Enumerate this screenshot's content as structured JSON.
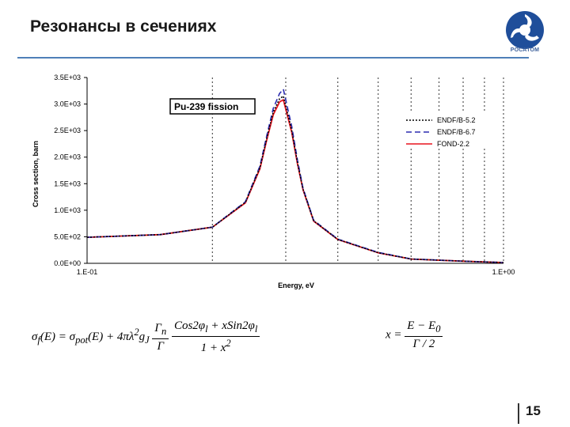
{
  "slide": {
    "title": "Резонансы в сечениях",
    "logo_text": "РОСАТОМ",
    "page_number": "15"
  },
  "formulas": {
    "cross_section": {
      "lhs": "σ<sub>f</sub>(E) = σ<sub>pot</sub>(E) + 4πλ<sup>2</sup>g<sub>J</sub>",
      "frac1_num": "Γ<sub>n</sub>",
      "frac1_den": "Γ",
      "frac2_num": "Cos2φ<sub>l</sub> + xSin2φ<sub>l</sub>",
      "frac2_den": "1 + x<sup>2</sup>"
    },
    "x_def": {
      "lhs": "x =",
      "num": "E − E<sub>0</sub>",
      "den": "Γ / 2"
    }
  },
  "chart_data": {
    "type": "line",
    "annotation": "Pu-239 fission",
    "xlabel": "Energy, eV",
    "ylabel": "Cross section, barn",
    "xscale": "log",
    "xlim": [
      0.1,
      1.0
    ],
    "ylim": [
      0,
      3500
    ],
    "x_tick_labels": [
      "1.E-01",
      "1.E+00"
    ],
    "y_ticks": [
      0,
      500,
      1000,
      1500,
      2000,
      2500,
      3000,
      3500
    ],
    "y_tick_labels": [
      "0.0E+00",
      "5.0E+02",
      "1.0E+03",
      "1.5E+03",
      "2.0E+03",
      "2.5E+03",
      "3.0E+03",
      "3.5E+03"
    ],
    "grid": "vertical dotted",
    "legend_position": "right",
    "series": [
      {
        "name": "ENDF/B-5.2",
        "color": "#000000",
        "style": "dotted",
        "x": [
          0.1,
          0.15,
          0.2,
          0.24,
          0.26,
          0.27,
          0.28,
          0.29,
          0.296,
          0.31,
          0.32,
          0.33,
          0.35,
          0.4,
          0.5,
          0.6,
          0.8,
          1.0
        ],
        "y": [
          490,
          540,
          680,
          1150,
          1800,
          2350,
          2850,
          3100,
          3150,
          2500,
          1900,
          1400,
          800,
          450,
          200,
          80,
          40,
          15
        ]
      },
      {
        "name": "ENDF/B-6.7",
        "color": "#2b2bb0",
        "style": "dashed",
        "x": [
          0.1,
          0.15,
          0.2,
          0.24,
          0.26,
          0.27,
          0.28,
          0.29,
          0.296,
          0.31,
          0.32,
          0.33,
          0.35,
          0.4,
          0.5,
          0.6,
          0.8,
          1.0
        ],
        "y": [
          490,
          540,
          680,
          1160,
          1830,
          2400,
          2920,
          3200,
          3280,
          2580,
          1950,
          1420,
          810,
          455,
          205,
          82,
          40,
          15
        ]
      },
      {
        "name": "FOND-2.2",
        "color": "#e8141e",
        "style": "solid",
        "x": [
          0.1,
          0.15,
          0.2,
          0.24,
          0.26,
          0.27,
          0.28,
          0.29,
          0.296,
          0.31,
          0.32,
          0.33,
          0.35,
          0.4,
          0.5,
          0.6,
          0.8,
          1.0
        ],
        "y": [
          490,
          540,
          680,
          1140,
          1780,
          2320,
          2800,
          3040,
          3080,
          2470,
          1880,
          1390,
          795,
          448,
          198,
          80,
          40,
          15
        ]
      }
    ]
  }
}
